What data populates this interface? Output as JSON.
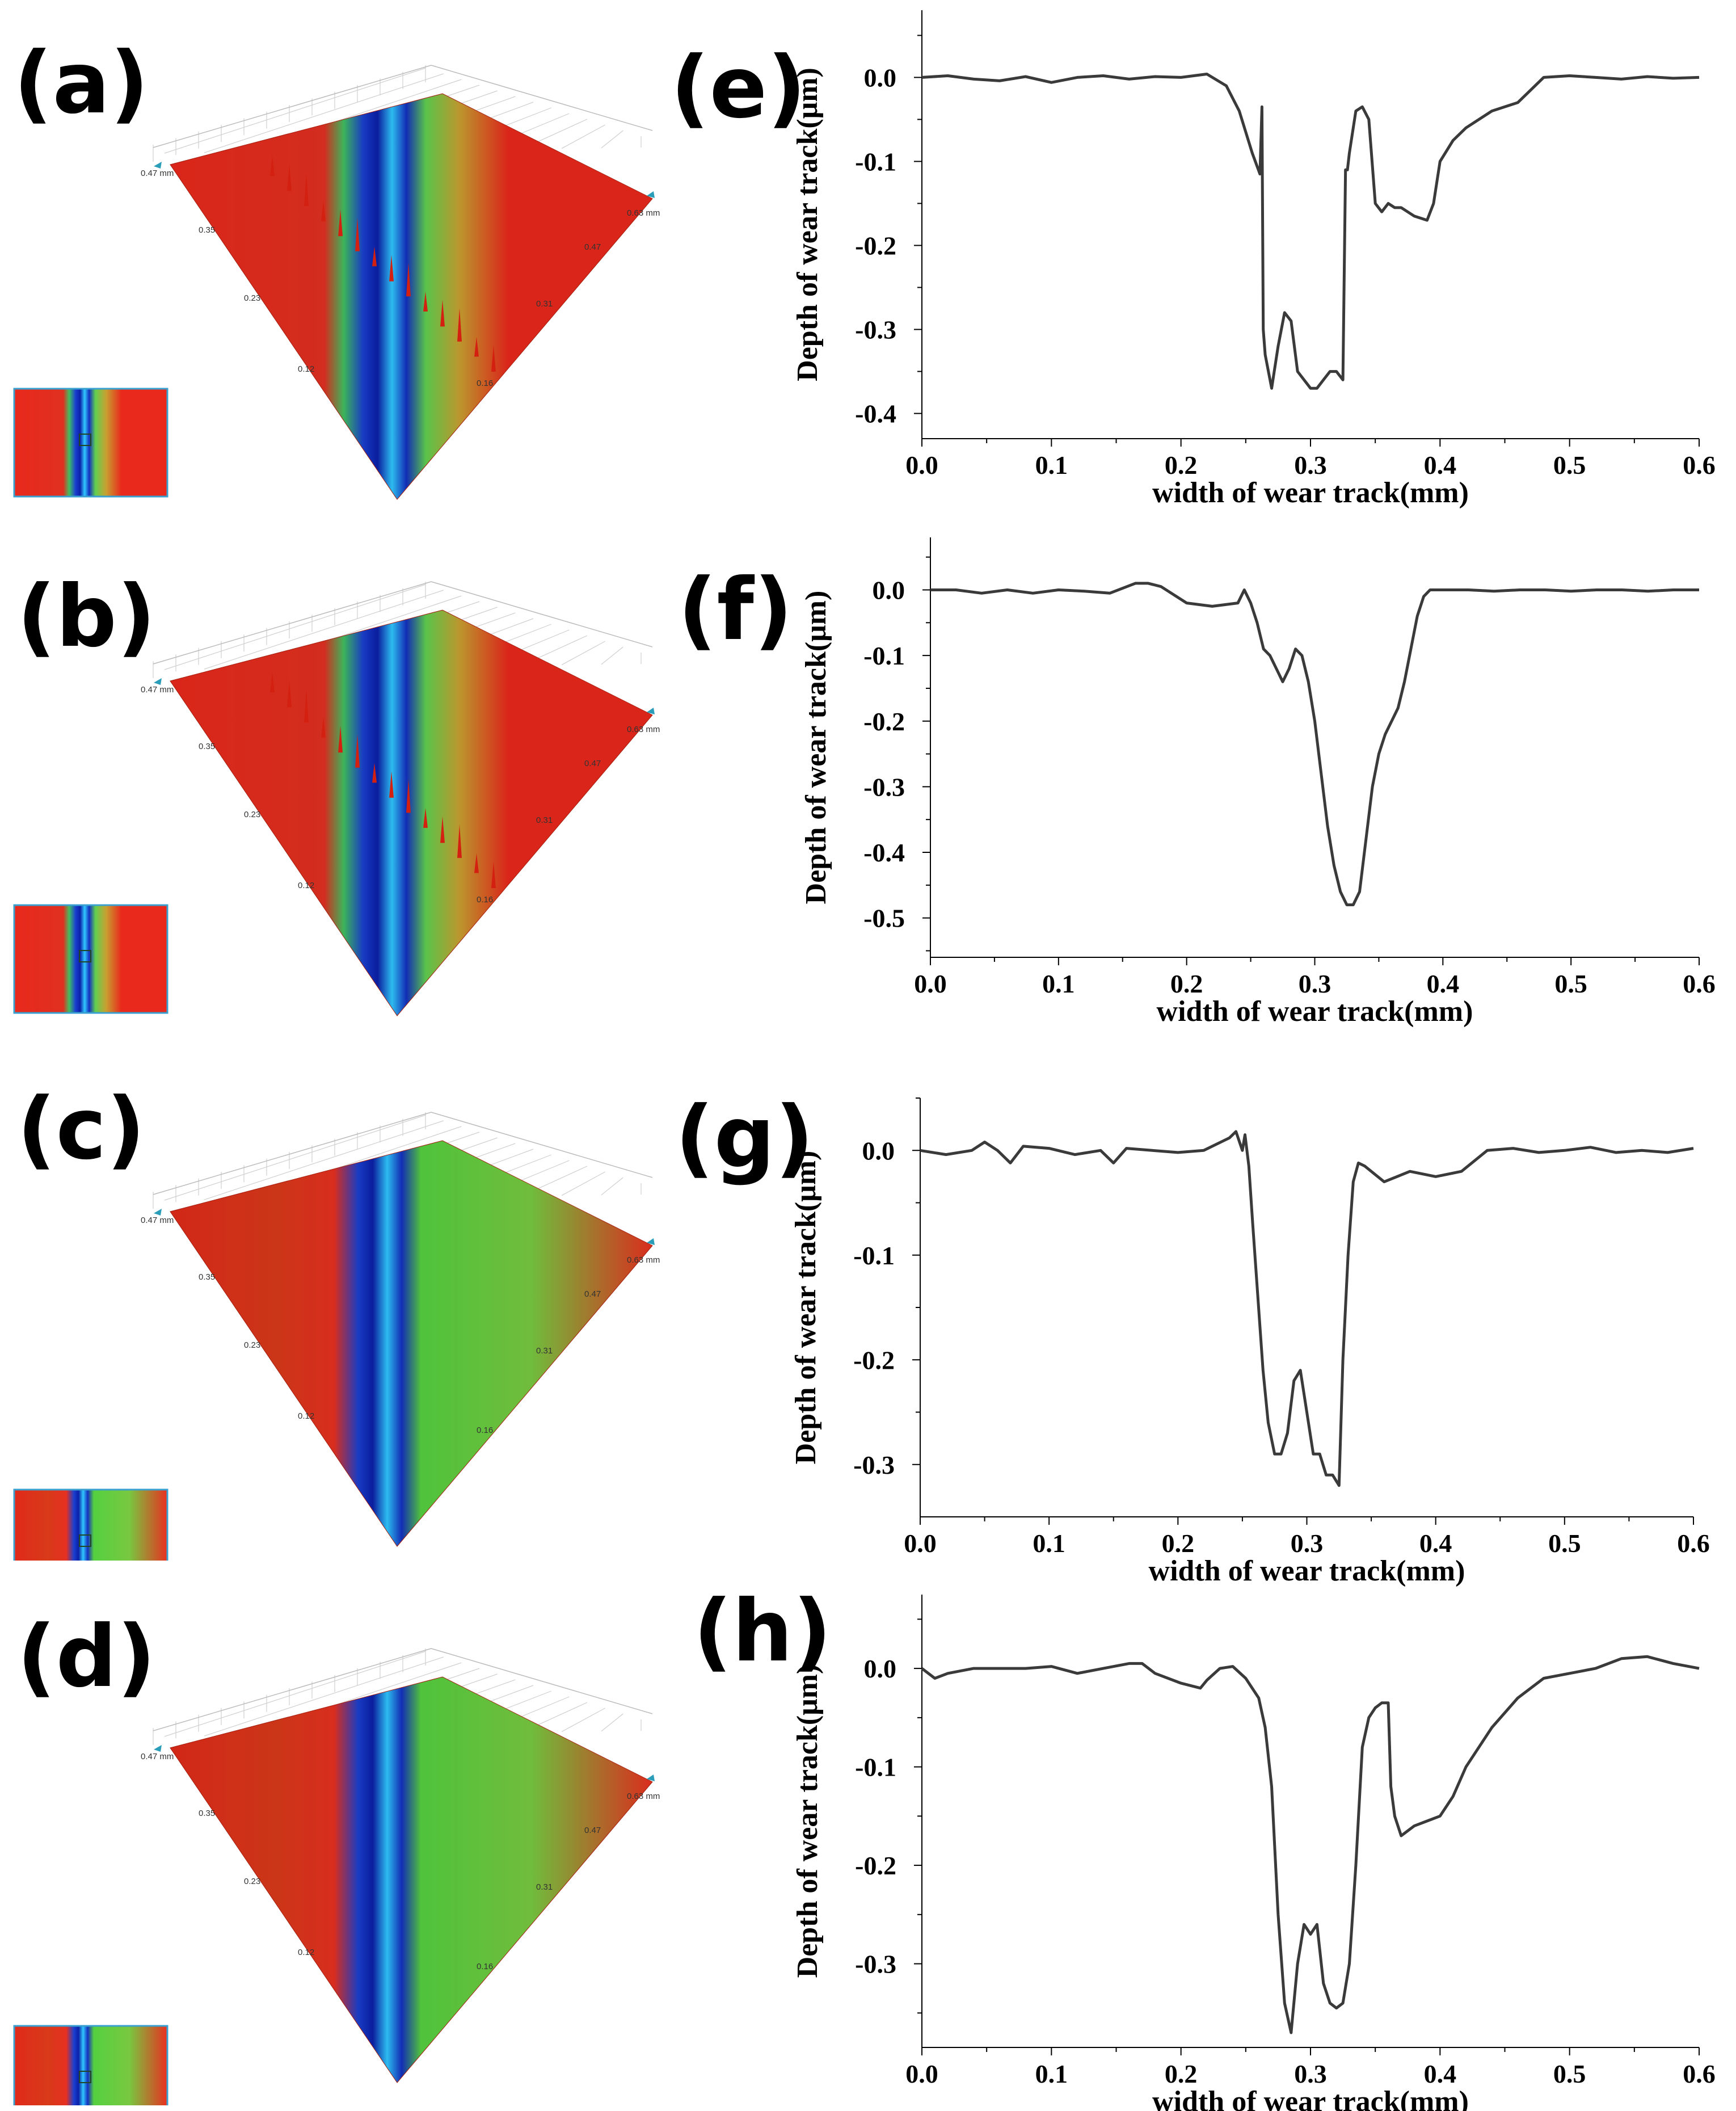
{
  "panels": {
    "left_labels": [
      "(a)",
      "(b)",
      "(c)",
      "(d)"
    ],
    "right_labels": [
      "(e)",
      "(f)",
      "(g)",
      "(h)"
    ]
  },
  "surfaces": [
    {
      "name": "a",
      "corner_left": "0.47 mm",
      "corner_right": "0.63 mm",
      "left_ticks": [
        "0.35",
        "0.23",
        "0.12"
      ],
      "right_ticks": [
        "0.47",
        "0.31",
        "0.16"
      ],
      "green_background": false
    },
    {
      "name": "b",
      "corner_left": "0.47 mm",
      "corner_right": "0.63 mm",
      "left_ticks": [
        "0.35",
        "0.23",
        "0.12"
      ],
      "right_ticks": [
        "0.47",
        "0.31",
        "0.16"
      ],
      "green_background": false
    },
    {
      "name": "c",
      "corner_left": "0.47 mm",
      "corner_right": "0.63 mm",
      "left_ticks": [
        "0.35",
        "0.23",
        "0.12"
      ],
      "right_ticks": [
        "0.47",
        "0.31",
        "0.16"
      ],
      "green_background": true
    },
    {
      "name": "d",
      "corner_left": "0.47 mm",
      "corner_right": "0.63 mm",
      "left_ticks": [
        "0.35",
        "0.23",
        "0.12"
      ],
      "right_ticks": [
        "0.47",
        "0.31",
        "0.16"
      ],
      "green_background": true
    }
  ],
  "colors": {
    "line": "#3a3a3a",
    "axis": "#000000",
    "surface_red": "#e8291c",
    "surface_green": "#5fcf3a",
    "surface_blue": "#1030c8"
  },
  "chart_data": [
    {
      "type": "line",
      "label": "(e)",
      "xlabel": "width of wear track(mm)",
      "ylabel": "Depth of wear track(μm)",
      "xlim": [
        0,
        0.6
      ],
      "ylim": [
        -0.43,
        0.08
      ],
      "xticks": [
        "0.0",
        "0.1",
        "0.2",
        "0.3",
        "0.4",
        "0.5",
        "0.6"
      ],
      "yticks": [
        0.0,
        -0.1,
        -0.2,
        -0.3,
        -0.4
      ],
      "ytick_labels": [
        "0.0",
        "-0.1",
        "-0.2",
        "-0.3",
        "-0.4"
      ],
      "x": [
        0,
        0.02,
        0.04,
        0.06,
        0.08,
        0.1,
        0.12,
        0.14,
        0.16,
        0.18,
        0.2,
        0.22,
        0.235,
        0.245,
        0.255,
        0.261,
        0.2625,
        0.2635,
        0.265,
        0.27,
        0.275,
        0.28,
        0.285,
        0.29,
        0.295,
        0.3,
        0.305,
        0.31,
        0.315,
        0.32,
        0.325,
        0.327,
        0.3285,
        0.33,
        0.335,
        0.34,
        0.345,
        0.35,
        0.355,
        0.36,
        0.365,
        0.37,
        0.375,
        0.38,
        0.39,
        0.395,
        0.4,
        0.41,
        0.42,
        0.44,
        0.46,
        0.48,
        0.5,
        0.52,
        0.54,
        0.56,
        0.58,
        0.6
      ],
      "y": [
        0.0,
        0.002,
        -0.002,
        -0.004,
        0.001,
        -0.006,
        0.0,
        0.002,
        -0.002,
        0.001,
        0.0,
        0.004,
        -0.01,
        -0.04,
        -0.09,
        -0.115,
        -0.035,
        -0.3,
        -0.33,
        -0.37,
        -0.32,
        -0.28,
        -0.29,
        -0.35,
        -0.36,
        -0.37,
        -0.37,
        -0.36,
        -0.35,
        -0.35,
        -0.36,
        -0.11,
        -0.11,
        -0.09,
        -0.04,
        -0.035,
        -0.05,
        -0.15,
        -0.16,
        -0.15,
        -0.155,
        -0.155,
        -0.16,
        -0.165,
        -0.17,
        -0.15,
        -0.1,
        -0.075,
        -0.06,
        -0.04,
        -0.03,
        0.0,
        0.002,
        0.0,
        -0.002,
        0.001,
        -0.001,
        0.0
      ]
    },
    {
      "type": "line",
      "label": "(f)",
      "xlabel": "width of wear track(mm)",
      "ylabel": "Depth of wear track(μm)",
      "xlim": [
        0,
        0.6
      ],
      "ylim": [
        -0.56,
        0.08
      ],
      "xticks": [
        "0.0",
        "0.1",
        "0.2",
        "0.3",
        "0.4",
        "0.5",
        "0.6"
      ],
      "yticks": [
        0.0,
        -0.1,
        -0.2,
        -0.3,
        -0.4,
        -0.5
      ],
      "ytick_labels": [
        "0.0",
        "-0.1",
        "-0.2",
        "-0.3",
        "-0.4",
        "-0.5"
      ],
      "x": [
        0,
        0.02,
        0.04,
        0.06,
        0.08,
        0.1,
        0.12,
        0.14,
        0.16,
        0.17,
        0.18,
        0.2,
        0.22,
        0.24,
        0.245,
        0.25,
        0.255,
        0.26,
        0.265,
        0.27,
        0.275,
        0.28,
        0.285,
        0.29,
        0.295,
        0.3,
        0.305,
        0.31,
        0.315,
        0.32,
        0.325,
        0.33,
        0.335,
        0.34,
        0.345,
        0.35,
        0.355,
        0.36,
        0.365,
        0.37,
        0.375,
        0.38,
        0.385,
        0.39,
        0.4,
        0.42,
        0.44,
        0.46,
        0.48,
        0.5,
        0.52,
        0.54,
        0.56,
        0.58,
        0.6
      ],
      "y": [
        0.0,
        0.0,
        -0.005,
        0.0,
        -0.005,
        0.0,
        -0.002,
        -0.005,
        0.01,
        0.01,
        0.005,
        -0.02,
        -0.025,
        -0.02,
        0.0,
        -0.02,
        -0.05,
        -0.09,
        -0.1,
        -0.12,
        -0.14,
        -0.12,
        -0.09,
        -0.1,
        -0.14,
        -0.2,
        -0.28,
        -0.36,
        -0.42,
        -0.46,
        -0.48,
        -0.48,
        -0.46,
        -0.38,
        -0.3,
        -0.25,
        -0.22,
        -0.2,
        -0.18,
        -0.14,
        -0.09,
        -0.04,
        -0.01,
        0.0,
        0.0,
        0.0,
        -0.002,
        0.0,
        0.0,
        -0.002,
        0.0,
        0.0,
        -0.002,
        0.0,
        0.0
      ]
    },
    {
      "type": "line",
      "label": "(g)",
      "xlabel": "width of wear track(mm)",
      "ylabel": "Depth of wear track(μm)",
      "xlim": [
        0,
        0.6
      ],
      "ylim": [
        -0.35,
        0.05
      ],
      "xticks": [
        "0.0",
        "0.1",
        "0.2",
        "0.3",
        "0.4",
        "0.5",
        "0.6"
      ],
      "yticks": [
        0.0,
        -0.1,
        -0.2,
        -0.3
      ],
      "ytick_labels": [
        "0.0",
        "-0.1",
        "-0.2",
        "-0.3"
      ],
      "x": [
        0,
        0.02,
        0.04,
        0.05,
        0.06,
        0.07,
        0.08,
        0.1,
        0.12,
        0.14,
        0.15,
        0.16,
        0.18,
        0.2,
        0.22,
        0.24,
        0.245,
        0.25,
        0.252,
        0.255,
        0.258,
        0.262,
        0.266,
        0.27,
        0.275,
        0.28,
        0.285,
        0.29,
        0.295,
        0.3,
        0.305,
        0.31,
        0.315,
        0.32,
        0.325,
        0.328,
        0.332,
        0.336,
        0.34,
        0.345,
        0.35,
        0.36,
        0.37,
        0.38,
        0.4,
        0.42,
        0.44,
        0.46,
        0.48,
        0.5,
        0.52,
        0.54,
        0.56,
        0.58,
        0.6
      ],
      "y": [
        0.0,
        -0.004,
        0.0,
        0.008,
        0.0,
        -0.012,
        0.004,
        0.002,
        -0.004,
        0.0,
        -0.012,
        0.002,
        0.0,
        -0.002,
        0.0,
        0.012,
        0.018,
        0.0,
        0.015,
        -0.015,
        -0.07,
        -0.14,
        -0.21,
        -0.26,
        -0.29,
        -0.29,
        -0.27,
        -0.22,
        -0.21,
        -0.25,
        -0.29,
        -0.29,
        -0.31,
        -0.31,
        -0.32,
        -0.2,
        -0.1,
        -0.03,
        -0.012,
        -0.015,
        -0.02,
        -0.03,
        -0.025,
        -0.02,
        -0.025,
        -0.02,
        0.0,
        0.002,
        -0.002,
        0.0,
        0.003,
        -0.002,
        0.0,
        -0.002,
        0.002
      ]
    },
    {
      "type": "line",
      "label": "(h)",
      "xlabel": "width of wear track(mm)",
      "ylabel": "Depth of wear track(μm)",
      "xlim": [
        0,
        0.6
      ],
      "ylim": [
        -0.385,
        0.075
      ],
      "xticks": [
        "0.0",
        "0.1",
        "0.2",
        "0.3",
        "0.4",
        "0.5",
        "0.6"
      ],
      "yticks": [
        0.0,
        -0.1,
        -0.2,
        -0.3
      ],
      "ytick_labels": [
        "0.0",
        "-0.1",
        "-0.2",
        "-0.3"
      ],
      "x": [
        0,
        0.01,
        0.02,
        0.04,
        0.06,
        0.08,
        0.1,
        0.12,
        0.14,
        0.16,
        0.17,
        0.18,
        0.2,
        0.215,
        0.22,
        0.23,
        0.24,
        0.25,
        0.26,
        0.265,
        0.27,
        0.275,
        0.28,
        0.285,
        0.29,
        0.295,
        0.3,
        0.305,
        0.31,
        0.315,
        0.32,
        0.325,
        0.33,
        0.335,
        0.34,
        0.345,
        0.35,
        0.355,
        0.36,
        0.362,
        0.365,
        0.37,
        0.38,
        0.39,
        0.4,
        0.41,
        0.42,
        0.44,
        0.46,
        0.48,
        0.5,
        0.52,
        0.54,
        0.56,
        0.58,
        0.6
      ],
      "y": [
        0.0,
        -0.01,
        -0.005,
        0.0,
        0.0,
        0.0,
        0.002,
        -0.005,
        0.0,
        0.005,
        0.005,
        -0.005,
        -0.015,
        -0.02,
        -0.012,
        0.0,
        0.002,
        -0.01,
        -0.03,
        -0.06,
        -0.12,
        -0.25,
        -0.34,
        -0.37,
        -0.3,
        -0.26,
        -0.27,
        -0.26,
        -0.32,
        -0.34,
        -0.345,
        -0.34,
        -0.3,
        -0.2,
        -0.08,
        -0.05,
        -0.04,
        -0.035,
        -0.035,
        -0.12,
        -0.15,
        -0.17,
        -0.16,
        -0.155,
        -0.15,
        -0.13,
        -0.1,
        -0.06,
        -0.03,
        -0.01,
        -0.005,
        0.0,
        0.01,
        0.012,
        0.005,
        0.0
      ]
    }
  ]
}
